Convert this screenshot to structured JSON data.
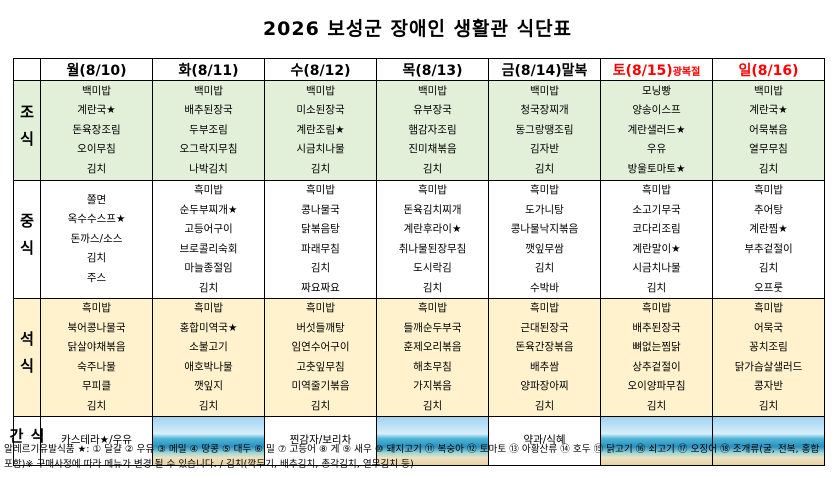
{
  "header": {
    "title": "2026 보성군 장애인 생활관 식단표"
  },
  "table": {
    "days": [
      {
        "day": "월(8/10)",
        "red": false
      },
      {
        "day": "화(8/11)",
        "red": false
      },
      {
        "day": "수(8/12)",
        "red": false
      },
      {
        "day": "목(8/13)",
        "red": false
      },
      {
        "day": "금(8/14)말복",
        "red": false
      },
      {
        "day": "토(8/15)",
        "note": "광복절",
        "red": true
      },
      {
        "day": "일(8/16)",
        "red": true
      }
    ],
    "meals": [
      {
        "label": "조식",
        "color": "#e2efd9",
        "cells": [
          [
            "백미밥",
            "계란국★",
            "돈육장조림",
            "오이무침",
            "김치"
          ],
          [
            "백미밥",
            "배추된장국",
            "두부조림",
            "오그락지무침",
            "나박김치"
          ],
          [
            "백미밥",
            "미소된장국",
            "계란조림★",
            "시금치나물",
            "김치"
          ],
          [
            "백미밥",
            "유부장국",
            "햄감자조림",
            "진미채볶음",
            "김치"
          ],
          [
            "백미밥",
            "청국장찌개",
            "동그랑땡조림",
            "김자반",
            "김치"
          ],
          [
            "모닝빵",
            "양송이스프",
            "계란샐러드★",
            "우유",
            "방울토마토★"
          ],
          [
            "백미밥",
            "계란국★",
            "어묵볶음",
            "열무무침",
            "김치"
          ]
        ]
      },
      {
        "label": "중식",
        "color": "#ffffff",
        "cells": [
          [
            "쫄면",
            "옥수수스프★",
            "돈까스/소스",
            "김치",
            "주스"
          ],
          [
            "흑미밥",
            "순두부찌개★",
            "고등어구이",
            "브로콜리숙회",
            "마늘종절임",
            "김치"
          ],
          [
            "흑미밥",
            "콩나물국",
            "닭볶음탕",
            "파래무침",
            "김치",
            "짜요짜요"
          ],
          [
            "흑미밥",
            "돈육김치찌개",
            "계란후라이★",
            "취나물된장무침",
            "도시락김",
            "김치"
          ],
          [
            "흑미밥",
            "도가니탕",
            "콩나물낙지볶음",
            "깻잎무쌈",
            "김치",
            "수박바"
          ],
          [
            "흑미밥",
            "소고기무국",
            "코다리조림",
            "계란말이★",
            "시금치나물",
            "김치"
          ],
          [
            "흑미밥",
            "추어탕",
            "계란찜★",
            "부추겉절이",
            "김치",
            "오프룻"
          ]
        ]
      },
      {
        "label": "석식",
        "color": "#fff2cc",
        "cells": [
          [
            "흑미밥",
            "북어콩나물국",
            "닭살야채볶음",
            "숙주나물",
            "무피클",
            "김치"
          ],
          [
            "흑미밥",
            "홍합미역국★",
            "소불고기",
            "애호박나물",
            "깻잎지",
            "김치"
          ],
          [
            "흑미밥",
            "버섯들깨탕",
            "임연수어구이",
            "고춧잎무침",
            "미역줄기볶음",
            "김치"
          ],
          [
            "흑미밥",
            "들깨순두부국",
            "훈제오리볶음",
            "해초무침",
            "가지볶음",
            "김치"
          ],
          [
            "흑미밥",
            "근대된장국",
            "돈육간장볶음",
            "배추쌈",
            "양파장아찌",
            "김치"
          ],
          [
            "흑미밥",
            "배추된장국",
            "뼈없는찜닭",
            "상추겉절이",
            "오이양파무침",
            "김치"
          ],
          [
            "흑미밥",
            "어묵국",
            "꽁치조림",
            "닭가슴살샐러드",
            "콩자반",
            "김치"
          ]
        ]
      },
      {
        "label": "간식",
        "color": "#ffffff",
        "cells": [
          [
            "카스테라★/우유"
          ],
          [
            null
          ],
          [
            "찐감자/보리차"
          ],
          [
            null
          ],
          [
            "약과/식혜"
          ],
          [
            null
          ],
          [
            null
          ]
        ]
      }
    ]
  },
  "footer": {
    "text": "알레르기유발식품 ★: ① 달걀 ② 우유 ③ 메밀 ④ 땅콩 ⑤ 대두 ⑥ 밀 ⑦ 고등어 ⑧ 게 ⑨ 새우 ⑩ 돼지고기 ⑪ 복숭아 ⑫ 토마토 ⑬ 아황산류 ⑭ 호두 ⑮ 닭고기 ⑯ 쇠고기 ⑰ 오징어 ⑱ 조개류(굴, 전복, 홍합 포함)※ 구매사정에 따라 메뉴가 변경 될 수 있습니다.  / 김치(깍두기, 배추김치, 총각김치, 열무김치 등)"
  }
}
